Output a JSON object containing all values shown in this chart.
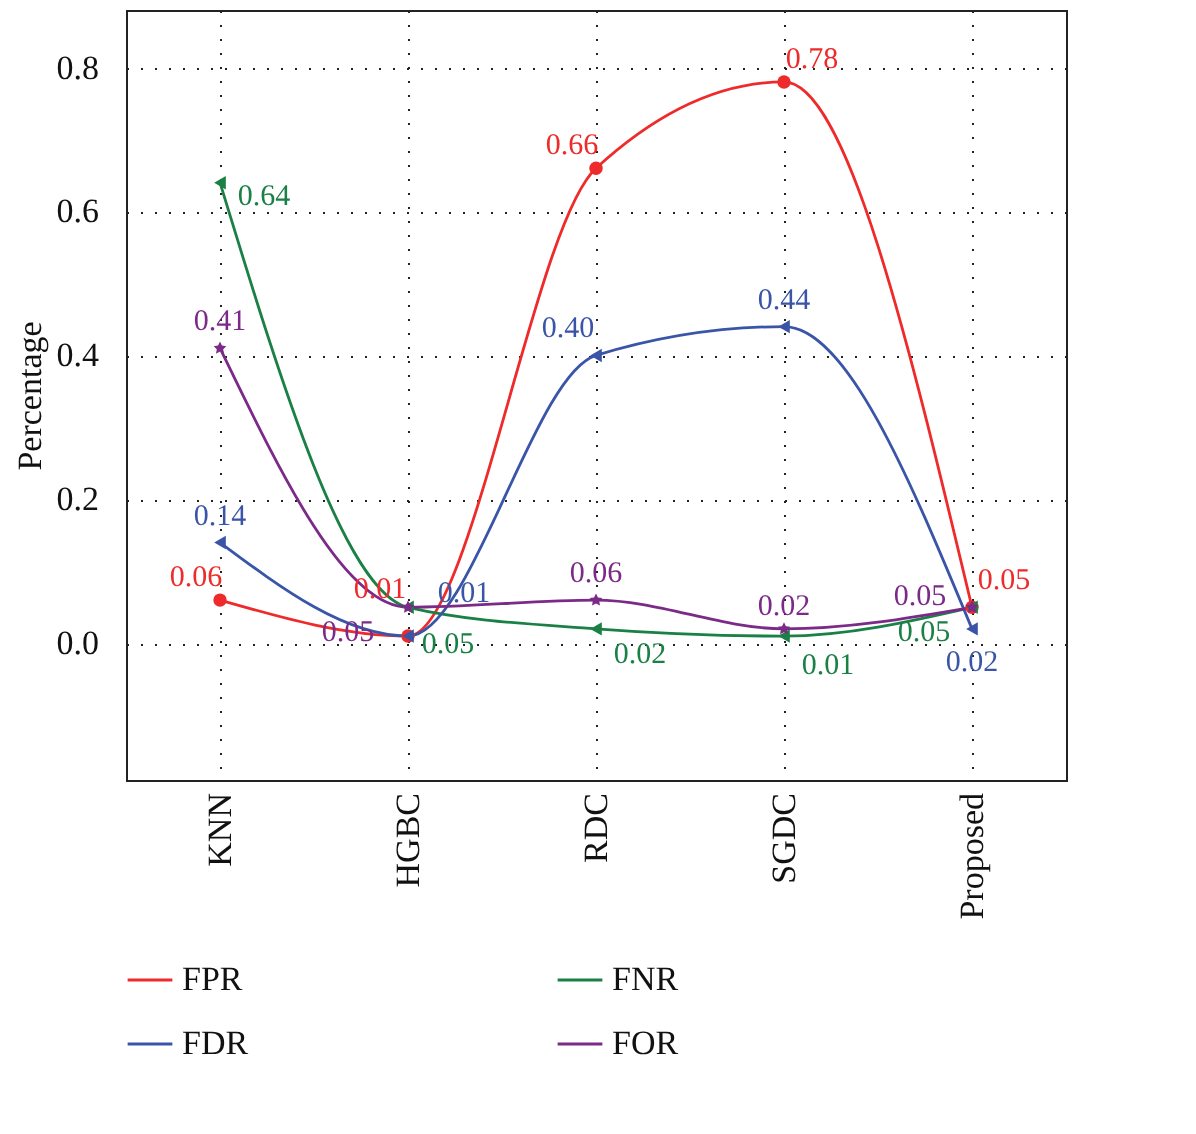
{
  "chart_data": {
    "type": "line",
    "ylabel": "Percentage",
    "categories": [
      "KNN",
      "HGBC",
      "RDC",
      "SGDC",
      "Proposed"
    ],
    "series": [
      {
        "name": "FPR",
        "color": "#ee2a2a",
        "marker": "circle",
        "values": [
          0.06,
          0.01,
          0.66,
          0.78,
          0.05
        ],
        "value_labels": [
          "0.06",
          "0.01",
          "0.66",
          "0.78",
          "0.05"
        ]
      },
      {
        "name": "FNR",
        "color": "#1b8045",
        "marker": "triangle",
        "values": [
          0.64,
          0.05,
          0.02,
          0.01,
          0.05
        ],
        "value_labels": [
          "0.64",
          "0.05",
          "0.02",
          "0.01",
          "0.05"
        ]
      },
      {
        "name": "FDR",
        "color": "#3a55a8",
        "marker": "triangle",
        "values": [
          0.14,
          0.01,
          0.4,
          0.44,
          0.02
        ],
        "value_labels": [
          "0.14",
          "0.01",
          "0.40",
          "0.44",
          "0.02"
        ]
      },
      {
        "name": "FOR",
        "color": "#7b2a88",
        "marker": "star",
        "values": [
          0.41,
          0.05,
          0.06,
          0.02,
          0.05
        ],
        "value_labels": [
          "0.41",
          "0.05",
          "0.06",
          "0.02",
          "0.05"
        ]
      }
    ],
    "ylim": [
      -0.19,
      0.88
    ],
    "yticks": [
      {
        "value": 0,
        "label": "0.0"
      },
      {
        "value": 0.2,
        "label": "0.2"
      },
      {
        "value": 0.4,
        "label": "0.4"
      },
      {
        "value": 0.6,
        "label": "0.6"
      },
      {
        "value": 0.8,
        "label": "0.8"
      }
    ],
    "grid": true,
    "legend": "bottom",
    "line_style": "solid"
  }
}
